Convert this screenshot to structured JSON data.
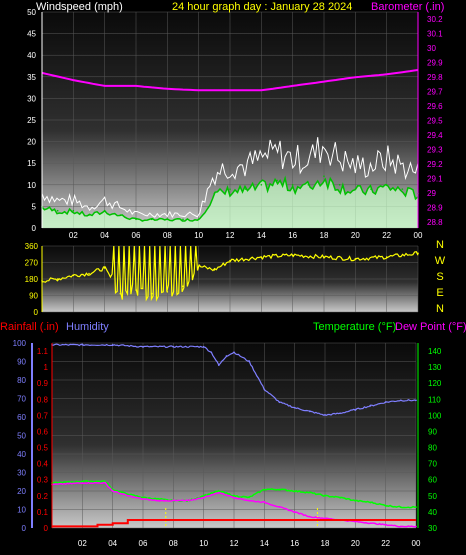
{
  "header": {
    "wind_title": "Windspeed (mph)",
    "date_title": "24 hour graph day : January 28 2024",
    "baro_title": "Barometer (.in)"
  },
  "bottom_header": {
    "rain_title": "Rainfall (.in)",
    "hum_title": "Humidity",
    "temp_title": "Temperature (°F)",
    "dew_title": "Dew Point (°F)"
  },
  "colors": {
    "wind_label": "#ffffff",
    "date_label": "#ffff00",
    "baro": "#ff00ff",
    "wind_dir": "#ffff00",
    "rain": "#ff0000",
    "humidity": "#7f7fff",
    "temperature": "#00ff00",
    "dew_point": "#ff00ff",
    "wind_speed": "#ffffff",
    "wind_avg": "#00c000",
    "wind_fill": "#c8ffc8"
  },
  "chart_data": [
    {
      "type": "line",
      "name": "wind-baro",
      "x_ticks": [
        "02",
        "04",
        "06",
        "08",
        "10",
        "12",
        "14",
        "16",
        "18",
        "20",
        "22",
        "00"
      ],
      "y_left": {
        "title": "Windspeed (mph)",
        "ticks": [
          0,
          5,
          10,
          15,
          20,
          25,
          30,
          35,
          40,
          45,
          50
        ],
        "ylim": [
          0,
          50
        ]
      },
      "y_right": {
        "title": "Barometer (.in)",
        "ticks": [
          "28.8",
          "28.9",
          "29",
          "29.1",
          "29.2",
          "29.3",
          "29.4",
          "29.5",
          "29.6",
          "29.7",
          "29.8",
          "29.9",
          "30",
          "30.1",
          "30.2"
        ],
        "ylim": [
          28.76,
          30.25
        ]
      },
      "series": [
        {
          "name": "Windspeed (mph)",
          "hours": [
            0,
            1,
            2,
            3,
            4,
            5,
            6,
            7,
            8,
            9,
            10,
            11,
            12,
            13,
            14,
            15,
            16,
            17,
            18,
            19,
            20,
            21,
            22,
            23,
            24
          ],
          "values": [
            5,
            4,
            4,
            3,
            4,
            3,
            2,
            2,
            2,
            2,
            2,
            8,
            9,
            9,
            10,
            11,
            10,
            10,
            12,
            10,
            9,
            9,
            10,
            9,
            8
          ]
        },
        {
          "name": "Barometer (.in)",
          "hours": [
            0,
            2,
            4,
            6,
            8,
            10,
            12,
            14,
            16,
            18,
            20,
            22,
            24
          ],
          "values": [
            29.83,
            29.78,
            29.74,
            29.74,
            29.72,
            29.71,
            29.71,
            29.71,
            29.74,
            29.77,
            29.8,
            29.82,
            29.85
          ]
        }
      ]
    },
    {
      "type": "line",
      "name": "wind-direction",
      "y_ticks": [
        0,
        90,
        180,
        270,
        360
      ],
      "ylim": [
        0,
        360
      ],
      "compass": [
        "N",
        "W",
        "S",
        "E",
        "N"
      ],
      "series": [
        {
          "name": "Wind Direction",
          "hours": [
            0,
            1,
            2,
            3,
            4,
            5,
            6,
            7,
            8,
            9,
            10,
            11,
            12,
            14,
            16,
            18,
            20,
            22,
            24
          ],
          "values": [
            170,
            180,
            200,
            210,
            240,
            100,
            120,
            100,
            110,
            140,
            250,
            230,
            280,
            300,
            310,
            300,
            290,
            300,
            320
          ]
        }
      ]
    },
    {
      "type": "line",
      "name": "temp-humidity-rain",
      "x_ticks": [
        "02",
        "04",
        "06",
        "08",
        "10",
        "12",
        "14",
        "16",
        "18",
        "20",
        "22",
        "00"
      ],
      "y_humidity": {
        "title": "Humidity",
        "ticks": [
          0,
          10,
          20,
          30,
          40,
          50,
          60,
          70,
          80,
          90,
          100
        ],
        "ylim": [
          0,
          100
        ]
      },
      "y_rain": {
        "title": "Rainfall (.in)",
        "ticks": [
          "0",
          "0.1",
          "0.2",
          "0.3",
          "0.4",
          "0.5",
          "0.6",
          "0.7",
          "0.8",
          "0.9",
          "1",
          "1.1"
        ],
        "ylim": [
          0,
          1.15
        ]
      },
      "y_temp": {
        "title": "Temperature (°F)",
        "ticks": [
          30,
          40,
          50,
          60,
          70,
          80,
          90,
          100,
          110,
          120,
          130,
          140
        ],
        "ylim": [
          30,
          145
        ]
      },
      "series": [
        {
          "name": "Humidity",
          "hours": [
            0,
            2,
            4,
            6,
            8,
            10,
            10.5,
            11,
            11.5,
            12,
            13,
            14,
            15,
            16,
            17,
            18,
            19,
            20,
            21,
            22,
            23,
            24
          ],
          "values": [
            99,
            99,
            99,
            98,
            98,
            98,
            95,
            88,
            93,
            95,
            90,
            75,
            68,
            65,
            63,
            61,
            62,
            64,
            66,
            68,
            69,
            69
          ]
        },
        {
          "name": "Temperature (°F)",
          "hours": [
            0,
            2,
            3.5,
            4,
            5,
            6,
            7,
            8,
            9,
            10,
            11,
            12,
            13,
            14,
            15,
            16,
            17,
            18,
            19,
            20,
            21,
            22,
            23,
            24
          ],
          "values": [
            58,
            59,
            59,
            54,
            51,
            49,
            48,
            47,
            47,
            50,
            53,
            50,
            49,
            54,
            54,
            53,
            52,
            50,
            49,
            47,
            46,
            44,
            43,
            43
          ]
        },
        {
          "name": "Dew Point (°F)",
          "hours": [
            0,
            2,
            3.5,
            4,
            5,
            6,
            7,
            8,
            9,
            10,
            11,
            12,
            13,
            14,
            15,
            16,
            17,
            18,
            19,
            20,
            21,
            22,
            23,
            24
          ],
          "values": [
            57,
            58,
            58,
            53,
            50,
            48,
            47,
            47,
            47,
            49,
            52,
            49,
            47,
            46,
            43,
            40,
            37,
            36,
            35,
            34,
            33,
            32,
            31,
            31
          ]
        },
        {
          "name": "Rainfall (.in)",
          "hours": [
            0,
            2,
            3,
            4,
            5,
            6,
            7,
            24
          ],
          "values": [
            0.01,
            0.01,
            0.02,
            0.03,
            0.05,
            0.05,
            0.05,
            0.05
          ]
        }
      ]
    }
  ]
}
